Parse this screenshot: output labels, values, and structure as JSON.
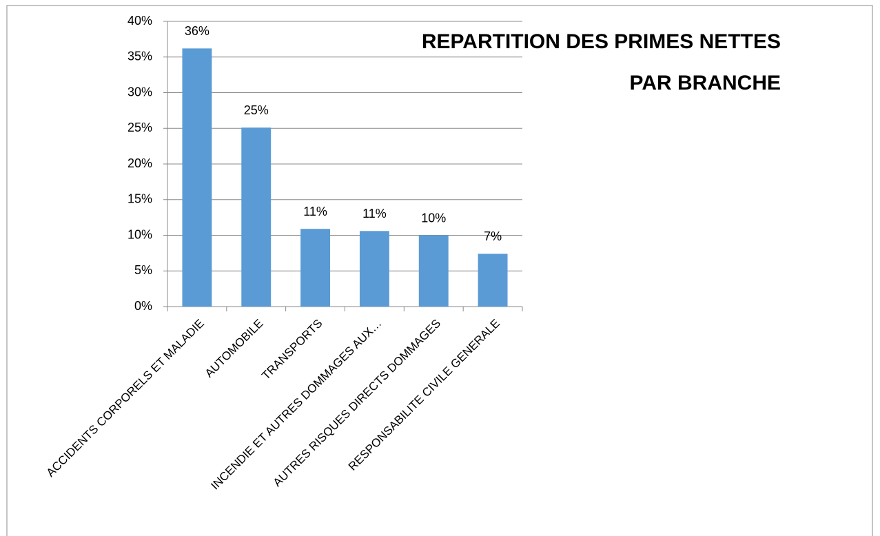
{
  "chart_data": {
    "type": "bar",
    "title": [
      "REPARTITION DES PRIMES NETTES",
      "PAR BRANCHE"
    ],
    "categories": [
      "ACCIDENTS CORPORELS ET MALADIE",
      "AUTOMOBILE",
      "TRANSPORTS",
      "INCENDIE ET AUTRES DOMMAGES AUX…",
      "AUTRES RISQUES DIRECTS DOMMAGES",
      "RESPONSABILITE CIVILE GENERALE"
    ],
    "values": [
      36.2,
      25.1,
      10.9,
      10.6,
      10.0,
      7.4
    ],
    "value_labels": [
      "36%",
      "25%",
      "11%",
      "11%",
      "10%",
      "7%"
    ],
    "color": "#5b9bd5",
    "ylim": [
      0,
      40
    ],
    "yticks": [
      {
        "value": 0,
        "label": "0%"
      },
      {
        "value": 5,
        "label": "5%"
      },
      {
        "value": 10,
        "label": "10%"
      },
      {
        "value": 15,
        "label": "15%"
      },
      {
        "value": 20,
        "label": "20%"
      },
      {
        "value": 25,
        "label": "25%"
      },
      {
        "value": 30,
        "label": "30%"
      },
      {
        "value": 35,
        "label": "35%"
      },
      {
        "value": 40,
        "label": "40%"
      }
    ],
    "grid": true
  }
}
